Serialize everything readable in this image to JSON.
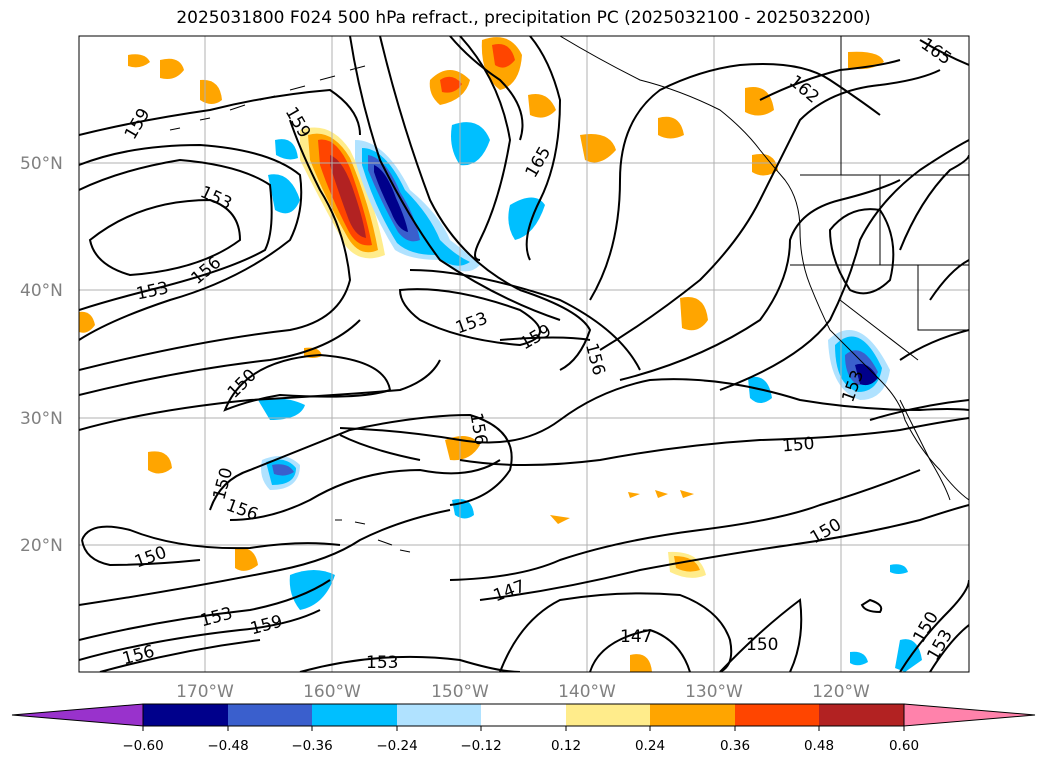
{
  "title": "2025031800 F024 500 hPa refract., precipitation PC (2025032100 - 2025032200)",
  "lat_labels": [
    "50°N",
    "40°N",
    "30°N",
    "20°N"
  ],
  "lon_labels": [
    "170°W",
    "160°W",
    "150°W",
    "140°W",
    "130°W",
    "120°W"
  ],
  "contour_labels": [
    "159",
    "159",
    "153",
    "156",
    "153",
    "150",
    "150",
    "156",
    "150",
    "153",
    "159",
    "156",
    "153",
    "165",
    "162",
    "165",
    "153",
    "159",
    "156",
    "156",
    "147",
    "150",
    "147",
    "150",
    "150",
    "153",
    "150",
    "153"
  ],
  "colorbar": {
    "tick_labels": [
      "−0.60",
      "−0.48",
      "−0.36",
      "−0.24",
      "−0.12",
      "0.12",
      "0.24",
      "0.36",
      "0.48",
      "0.60"
    ],
    "colors": [
      "#9932cc",
      "#00008b",
      "#3a5fcd",
      "#00bfff",
      "#b0e2ff",
      "#ffffff",
      "#ffec8b",
      "#ffa500",
      "#ff4500",
      "#b22222",
      "#ff82ab"
    ]
  },
  "colors": {
    "land_outline": "#000000",
    "gridline": "#b0b0b0",
    "label_gray": "#808080"
  }
}
